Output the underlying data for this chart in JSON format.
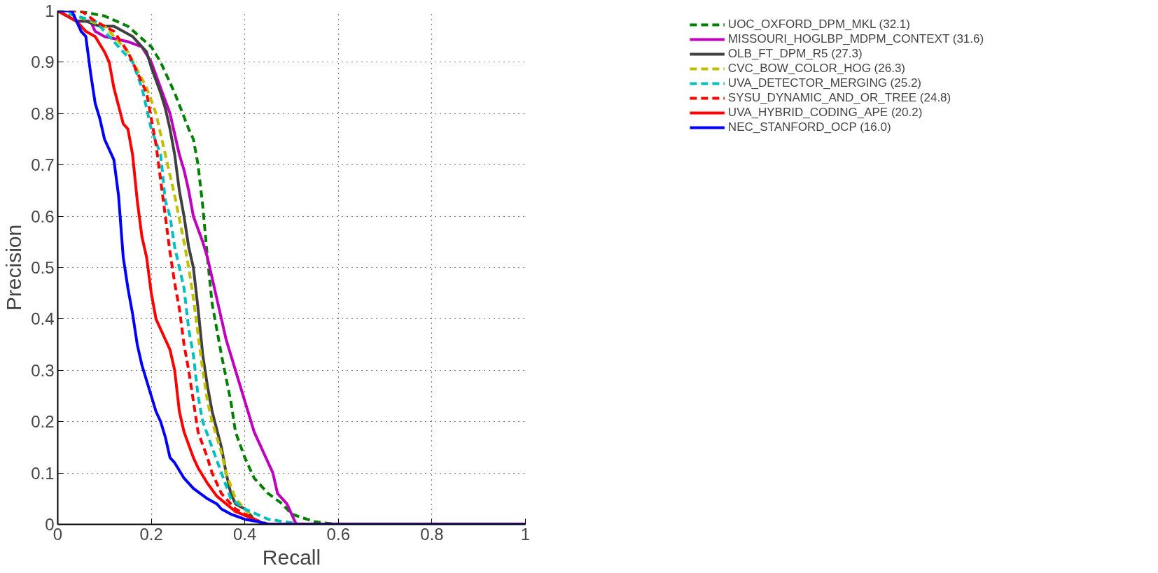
{
  "chart_data": {
    "type": "line",
    "xlabel": "Recall",
    "ylabel": "Precision",
    "xlim": [
      0,
      1
    ],
    "ylim": [
      0,
      1
    ],
    "xticks": [
      0,
      0.2,
      0.4,
      0.6,
      0.8,
      1
    ],
    "yticks": [
      0,
      0.1,
      0.2,
      0.3,
      0.4,
      0.5,
      0.6,
      0.7,
      0.8,
      0.9,
      1
    ],
    "grid": true,
    "legend": "right",
    "marker": "none",
    "series": [
      {
        "name": "UOC_OXFORD_DPM_MKL (32.1)",
        "color": "#008000",
        "line_style": "dashed",
        "x": [
          0,
          0.04,
          0.1,
          0.15,
          0.2,
          0.22,
          0.25,
          0.28,
          0.29,
          0.3,
          0.31,
          0.32,
          0.33,
          0.35,
          0.37,
          0.38,
          0.4,
          0.42,
          0.45,
          0.48,
          0.5,
          0.55,
          0.6,
          1
        ],
        "values": [
          1,
          1,
          0.99,
          0.97,
          0.93,
          0.9,
          0.84,
          0.77,
          0.75,
          0.7,
          0.62,
          0.52,
          0.43,
          0.33,
          0.24,
          0.18,
          0.13,
          0.09,
          0.06,
          0.04,
          0.02,
          0.005,
          0,
          0
        ]
      },
      {
        "name": "MISSOURI_HOGLBP_MDPM_CONTEXT (31.6)",
        "color": "#bf00bf",
        "line_style": "solid",
        "x": [
          0,
          0.04,
          0.07,
          0.08,
          0.1,
          0.15,
          0.18,
          0.2,
          0.22,
          0.24,
          0.26,
          0.27,
          0.28,
          0.29,
          0.31,
          0.32,
          0.33,
          0.35,
          0.36,
          0.38,
          0.4,
          0.42,
          0.43,
          0.44,
          0.46,
          0.47,
          0.49,
          0.5,
          0.51,
          1
        ],
        "values": [
          1,
          0.98,
          0.98,
          0.96,
          0.95,
          0.94,
          0.93,
          0.9,
          0.85,
          0.8,
          0.72,
          0.69,
          0.65,
          0.6,
          0.55,
          0.52,
          0.48,
          0.4,
          0.36,
          0.3,
          0.24,
          0.18,
          0.16,
          0.14,
          0.1,
          0.06,
          0.04,
          0.02,
          0,
          0
        ]
      },
      {
        "name": "OLB_FT_DPM_R5 (27.3)",
        "color": "#404040",
        "line_style": "solid",
        "x": [
          0,
          0.04,
          0.06,
          0.09,
          0.12,
          0.14,
          0.16,
          0.18,
          0.19,
          0.2,
          0.22,
          0.23,
          0.24,
          0.25,
          0.26,
          0.27,
          0.28,
          0.29,
          0.3,
          0.31,
          0.32,
          0.33,
          0.35,
          0.36,
          0.37,
          0.38,
          0.4,
          0.42,
          0.44,
          1
        ],
        "values": [
          1,
          0.98,
          0.98,
          0.97,
          0.97,
          0.96,
          0.95,
          0.93,
          0.92,
          0.89,
          0.84,
          0.81,
          0.77,
          0.72,
          0.65,
          0.6,
          0.54,
          0.5,
          0.42,
          0.33,
          0.27,
          0.22,
          0.15,
          0.1,
          0.06,
          0.04,
          0.03,
          0.01,
          0,
          0
        ]
      },
      {
        "name": "CVC_BOW_COLOR_HOG (26.3)",
        "color": "#bfbf00",
        "line_style": "dashed",
        "x": [
          0,
          0.04,
          0.1,
          0.15,
          0.19,
          0.21,
          0.23,
          0.25,
          0.27,
          0.28,
          0.29,
          0.3,
          0.31,
          0.32,
          0.33,
          0.35,
          0.36,
          0.38,
          0.4,
          0.42,
          0.45,
          1
        ],
        "values": [
          1,
          0.99,
          0.97,
          0.92,
          0.85,
          0.8,
          0.72,
          0.64,
          0.55,
          0.5,
          0.44,
          0.37,
          0.3,
          0.24,
          0.2,
          0.14,
          0.1,
          0.05,
          0.03,
          0.01,
          0,
          0
        ]
      },
      {
        "name": "UVA_DETECTOR_MERGING (25.2)",
        "color": "#00bfbf",
        "line_style": "dashed",
        "x": [
          0,
          0.04,
          0.08,
          0.1,
          0.13,
          0.16,
          0.18,
          0.2,
          0.22,
          0.23,
          0.24,
          0.25,
          0.27,
          0.28,
          0.29,
          0.3,
          0.31,
          0.33,
          0.35,
          0.37,
          0.4,
          0.45,
          0.5,
          0.52,
          1
        ],
        "values": [
          1,
          0.99,
          0.98,
          0.96,
          0.93,
          0.9,
          0.85,
          0.77,
          0.72,
          0.63,
          0.6,
          0.54,
          0.46,
          0.38,
          0.33,
          0.25,
          0.2,
          0.15,
          0.1,
          0.05,
          0.03,
          0.01,
          0.003,
          0,
          0
        ]
      },
      {
        "name": "SYSU_DYNAMIC_AND_OR_TREE (24.8)",
        "color": "#ff0000",
        "line_style": "dashed",
        "x": [
          0,
          0.05,
          0.08,
          0.12,
          0.15,
          0.17,
          0.19,
          0.2,
          0.21,
          0.22,
          0.23,
          0.24,
          0.25,
          0.26,
          0.27,
          0.28,
          0.29,
          0.3,
          0.32,
          0.33,
          0.35,
          0.38,
          0.42,
          0.45,
          1
        ],
        "values": [
          1,
          1,
          0.98,
          0.96,
          0.92,
          0.88,
          0.84,
          0.79,
          0.74,
          0.67,
          0.6,
          0.53,
          0.47,
          0.42,
          0.35,
          0.3,
          0.24,
          0.18,
          0.13,
          0.1,
          0.06,
          0.03,
          0.01,
          0,
          0
        ]
      },
      {
        "name": "UVA_HYBRID_CODING_APE (20.2)",
        "color": "#ff0000",
        "line_style": "solid",
        "x": [
          0,
          0.04,
          0.06,
          0.08,
          0.1,
          0.11,
          0.12,
          0.14,
          0.15,
          0.16,
          0.17,
          0.18,
          0.19,
          0.2,
          0.21,
          0.23,
          0.24,
          0.25,
          0.26,
          0.27,
          0.29,
          0.3,
          0.32,
          0.34,
          0.36,
          0.38,
          0.42,
          0.44,
          1
        ],
        "values": [
          1,
          0.98,
          0.96,
          0.95,
          0.92,
          0.9,
          0.85,
          0.78,
          0.77,
          0.72,
          0.63,
          0.56,
          0.52,
          0.45,
          0.4,
          0.36,
          0.34,
          0.3,
          0.22,
          0.18,
          0.13,
          0.11,
          0.08,
          0.055,
          0.04,
          0.025,
          0.01,
          0,
          0
        ]
      },
      {
        "name": "NEC_STANFORD_OCP (16.0)",
        "color": "#0000ff",
        "line_style": "solid",
        "x": [
          0,
          0.03,
          0.05,
          0.06,
          0.07,
          0.08,
          0.09,
          0.1,
          0.11,
          0.12,
          0.13,
          0.14,
          0.15,
          0.16,
          0.17,
          0.18,
          0.19,
          0.2,
          0.21,
          0.22,
          0.23,
          0.24,
          0.25,
          0.27,
          0.29,
          0.32,
          0.34,
          0.35,
          0.37,
          0.4,
          0.43,
          0.45,
          1
        ],
        "values": [
          1,
          1,
          0.96,
          0.95,
          0.88,
          0.82,
          0.79,
          0.75,
          0.73,
          0.71,
          0.64,
          0.52,
          0.46,
          0.41,
          0.35,
          0.31,
          0.28,
          0.25,
          0.22,
          0.2,
          0.17,
          0.13,
          0.12,
          0.09,
          0.07,
          0.05,
          0.04,
          0.03,
          0.02,
          0.01,
          0.005,
          0,
          0
        ]
      }
    ]
  }
}
